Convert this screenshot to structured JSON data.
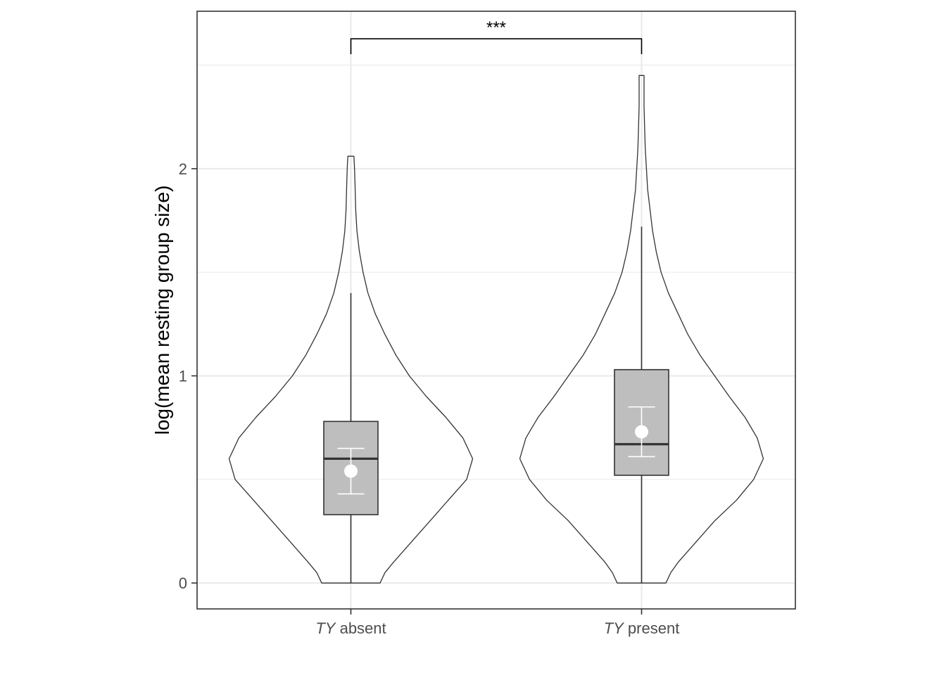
{
  "chart_data": {
    "type": "violin",
    "ylabel": "log(mean resting group size)",
    "xlabel": "",
    "ylim": [
      -0.125,
      2.76
    ],
    "y_ticks": [
      0,
      1,
      2
    ],
    "y_tick_labels": [
      "0",
      "1",
      "2"
    ],
    "grid": true,
    "categories": [
      {
        "italic": "TY",
        "rest": " absent"
      },
      {
        "italic": "TY",
        "rest": " present"
      }
    ],
    "groups": [
      {
        "box": {
          "min": 0.0,
          "q1": 0.33,
          "median": 0.6,
          "q3": 0.78,
          "max": 1.4
        },
        "mean": 0.54,
        "ci": [
          0.43,
          0.65
        ],
        "violin": {
          "y": [
            0,
            0.05,
            0.1,
            0.2,
            0.3,
            0.4,
            0.5,
            0.6,
            0.7,
            0.8,
            0.9,
            1.0,
            1.1,
            1.2,
            1.3,
            1.4,
            1.5,
            1.6,
            1.7,
            1.8,
            1.9,
            2.0,
            2.06
          ],
          "halfwidth": [
            0.24,
            0.28,
            0.35,
            0.5,
            0.65,
            0.8,
            0.95,
            1.0,
            0.92,
            0.78,
            0.62,
            0.48,
            0.37,
            0.28,
            0.2,
            0.14,
            0.1,
            0.07,
            0.05,
            0.04,
            0.035,
            0.03,
            0.025
          ]
        }
      },
      {
        "box": {
          "min": 0.0,
          "q1": 0.52,
          "median": 0.67,
          "q3": 1.03,
          "max": 1.72
        },
        "mean": 0.73,
        "ci": [
          0.61,
          0.85
        ],
        "violin": {
          "y": [
            0,
            0.05,
            0.1,
            0.2,
            0.3,
            0.4,
            0.5,
            0.6,
            0.7,
            0.8,
            0.9,
            1.0,
            1.1,
            1.2,
            1.3,
            1.4,
            1.5,
            1.6,
            1.7,
            1.8,
            1.9,
            2.0,
            2.1,
            2.2,
            2.3,
            2.4,
            2.45
          ],
          "halfwidth": [
            0.2,
            0.24,
            0.3,
            0.45,
            0.6,
            0.78,
            0.92,
            1.0,
            0.95,
            0.85,
            0.72,
            0.6,
            0.48,
            0.38,
            0.3,
            0.22,
            0.16,
            0.12,
            0.09,
            0.07,
            0.05,
            0.04,
            0.03,
            0.025,
            0.02,
            0.02,
            0.02
          ]
        }
      }
    ],
    "significance": {
      "label": "***",
      "from": 0,
      "to": 1,
      "y": 2.6
    }
  }
}
